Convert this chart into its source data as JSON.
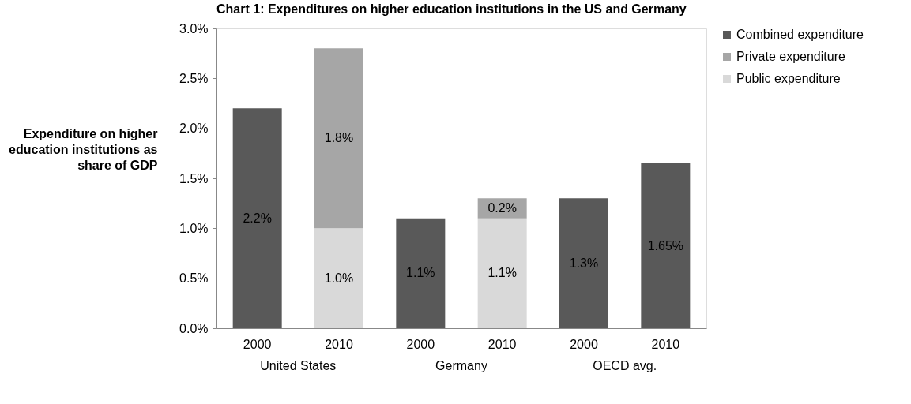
{
  "chart_data": {
    "type": "bar",
    "title": "Chart 1: Expenditures on higher education institutions in the US and Germany",
    "ylabel": "Expenditure on higher education institutions as share of GDP",
    "categories": [
      "2000",
      "2010",
      "2000",
      "2010",
      "2000",
      "2010"
    ],
    "annotations": [
      "United States",
      "Germany",
      "OECD avg."
    ],
    "stacked": true,
    "series": [
      {
        "name": "Public expenditure",
        "color": "#d9d9d9",
        "values": [
          null,
          1.0,
          null,
          1.1,
          null,
          null
        ],
        "value_labels": [
          null,
          "1.0%",
          null,
          "1.1%",
          null,
          null
        ]
      },
      {
        "name": "Private expenditure",
        "color": "#a6a6a6",
        "values": [
          null,
          1.8,
          null,
          0.2,
          null,
          null
        ],
        "value_labels": [
          null,
          "1.8%",
          null,
          "0.2%",
          null,
          null
        ]
      },
      {
        "name": "Combined expenditure",
        "color": "#595959",
        "values": [
          2.2,
          null,
          1.1,
          null,
          1.3,
          1.65
        ],
        "value_labels": [
          "2.2%",
          null,
          "1.1%",
          null,
          "1.3%",
          "1.65%"
        ]
      }
    ],
    "ylim": [
      0,
      3
    ],
    "yticks": [
      {
        "value": 0,
        "label": "0.0%"
      },
      {
        "value": 0.5,
        "label": "0.5%"
      },
      {
        "value": 1,
        "label": "1.0%"
      },
      {
        "value": 1.5,
        "label": "1.5%"
      },
      {
        "value": 2,
        "label": "2.0%"
      },
      {
        "value": 2.5,
        "label": "2.5%"
      },
      {
        "value": 3,
        "label": "3.0%"
      }
    ],
    "grid": false,
    "legend": "right"
  }
}
